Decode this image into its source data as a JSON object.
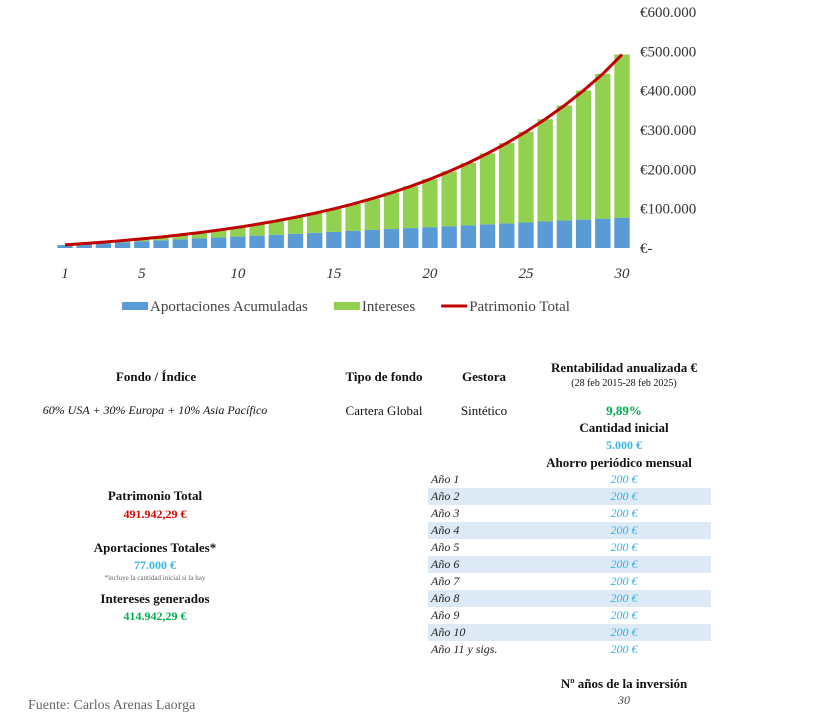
{
  "chart_data": {
    "type": "bar",
    "stacked": true,
    "categories": [
      "1",
      null,
      null,
      null,
      "5",
      null,
      null,
      null,
      null,
      "10",
      null,
      null,
      null,
      null,
      "15",
      null,
      null,
      null,
      null,
      "20",
      null,
      null,
      null,
      null,
      "25",
      null,
      null,
      null,
      null,
      "30"
    ],
    "series": [
      {
        "name": "Aportaciones Acumuladas",
        "color": "#5b9bd5",
        "values": [
          7400,
          9800,
          12200,
          14600,
          17000,
          19400,
          21800,
          24200,
          26600,
          29000,
          31400,
          33800,
          36200,
          38600,
          41000,
          43400,
          45800,
          48200,
          50600,
          53000,
          55400,
          57800,
          60200,
          62600,
          65000,
          67400,
          69800,
          72200,
          74600,
          77000
        ]
      },
      {
        "name": "Intereses",
        "color": "#92d050",
        "values": [
          600,
          1500,
          2700,
          4300,
          6300,
          8700,
          11600,
          15000,
          19000,
          23600,
          28900,
          35000,
          41900,
          49800,
          58600,
          68600,
          79800,
          92300,
          106300,
          121900,
          139400,
          158700,
          180300,
          204100,
          230600,
          260000,
          292500,
          328400,
          368100,
          414900
        ]
      },
      {
        "name": "Patrimonio Total",
        "color": "#c00000",
        "type": "line",
        "values": [
          8000,
          11300,
          14900,
          18900,
          23300,
          28100,
          33400,
          39200,
          45600,
          52600,
          60300,
          68800,
          78100,
          88400,
          99600,
          112000,
          125600,
          140500,
          156900,
          174900,
          194800,
          216500,
          240500,
          266700,
          295600,
          327400,
          362300,
          400600,
          442700,
          491900
        ]
      }
    ],
    "ylim": [
      0,
      600000
    ],
    "yticks": [
      {
        "value": 0,
        "label": "€-"
      },
      {
        "value": 100000,
        "label": "€100.000"
      },
      {
        "value": 200000,
        "label": "€200.000"
      },
      {
        "value": 300000,
        "label": "€300.000"
      },
      {
        "value": 400000,
        "label": "€400.000"
      },
      {
        "value": 500000,
        "label": "€500.000"
      },
      {
        "value": 600000,
        "label": "€600.000"
      }
    ],
    "legend": "bottom"
  },
  "fund": {
    "headers": [
      "Fondo / Índice",
      "Tipo de fondo",
      "Gestora",
      "Rentabilidad anualizada €"
    ],
    "period": "(28 feb 2015-28 feb 2025)",
    "row": [
      "60% USA + 30% Europa + 10% Asia Pacífico",
      "Cartera Global",
      "Sintético",
      "9,89%"
    ]
  },
  "initial": {
    "label": "Cantidad inicial",
    "value": "5.000 €"
  },
  "monthly": {
    "label": "Ahorro periódico mensual",
    "rows": [
      [
        "Año 1",
        "200 €"
      ],
      [
        "Año 2",
        "200 €"
      ],
      [
        "Año 3",
        "200 €"
      ],
      [
        "Año 4",
        "200 €"
      ],
      [
        "Año 5",
        "200 €"
      ],
      [
        "Año 6",
        "200 €"
      ],
      [
        "Año 7",
        "200 €"
      ],
      [
        "Año 8",
        "200 €"
      ],
      [
        "Año 9",
        "200 €"
      ],
      [
        "Año 10",
        "200 €"
      ],
      [
        "Año 11 y sigs.",
        "200 €"
      ]
    ]
  },
  "years": {
    "label": "Nº años de la inversión",
    "value": "30"
  },
  "summary": {
    "total": {
      "label": "Patrimonio Total",
      "value": "491.942,29 €"
    },
    "contributions": {
      "label": "Aportaciones Totales*",
      "value": "77.000 €",
      "note": "*incluye la cantidad inicial si la hay"
    },
    "interest": {
      "label": "Intereses generados",
      "value": "414.942,29 €"
    }
  },
  "source": "Fuente: Carlos Arenas Laorga"
}
